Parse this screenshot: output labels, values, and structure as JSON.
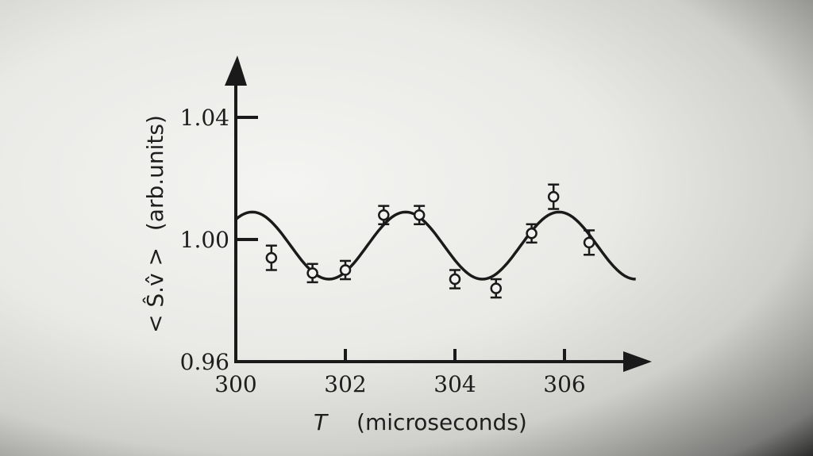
{
  "chart_data": {
    "type": "scatter",
    "xlabel": "T",
    "xlabel_unit": "(microseconds)",
    "ylabel": "< Ŝ.v̂ >",
    "ylabel_unit": "(arb.units)",
    "xlim": [
      300,
      307.3
    ],
    "ylim": [
      0.96,
      1.055
    ],
    "x_ticks": [
      300,
      302,
      304,
      306
    ],
    "x_tick_labels": [
      "300",
      "302",
      "304",
      "306"
    ],
    "y_ticks": [
      0.96,
      1.0,
      1.04
    ],
    "y_tick_labels": [
      "0.96",
      "1.00",
      "1.04"
    ],
    "grid": false,
    "series": [
      {
        "kind": "points",
        "x": [
          300.65,
          301.4,
          302.0,
          302.7,
          303.35,
          304.0,
          304.75,
          305.4,
          305.8,
          306.45
        ],
        "y": [
          0.994,
          0.989,
          0.99,
          1.008,
          1.008,
          0.987,
          0.984,
          1.002,
          1.014,
          0.999
        ],
        "err": [
          0.004,
          0.003,
          0.003,
          0.003,
          0.003,
          0.003,
          0.003,
          0.003,
          0.004,
          0.004
        ]
      },
      {
        "kind": "fit_curve",
        "offset": 0.998,
        "amplitude": 0.011,
        "period": 2.8,
        "peak_at": 303.1,
        "x_range": [
          300,
          307.3
        ]
      }
    ]
  }
}
